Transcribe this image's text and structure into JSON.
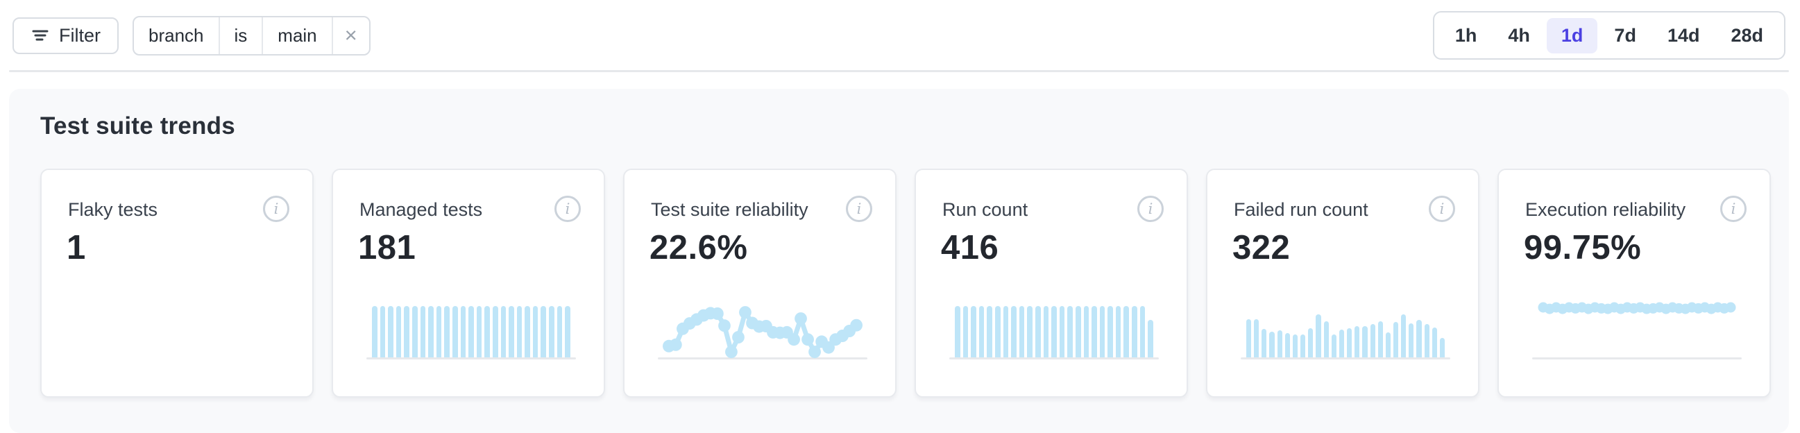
{
  "toolbar": {
    "filter_button": {
      "label": "Filter",
      "icon": "filter-lines-icon"
    },
    "filter_chip": {
      "field": "branch",
      "operator": "is",
      "value": "main",
      "remove_icon": "close-icon",
      "remove_symbol": "×"
    },
    "time_range": {
      "selected": "1d",
      "options": [
        "1h",
        "4h",
        "1d",
        "7d",
        "14d",
        "28d"
      ]
    }
  },
  "section": {
    "title": "Test suite trends",
    "cards": [
      {
        "label": "Flaky tests",
        "value": "1",
        "info_icon": "info-icon",
        "sparkline": null
      },
      {
        "label": "Managed tests",
        "value": "181",
        "info_icon": "info-icon",
        "sparkline": {
          "type": "bar",
          "scale": "relative-height-0-1 (no axis labels shown)",
          "values": [
            1,
            1,
            1,
            1,
            1,
            1,
            1,
            1,
            1,
            1,
            1,
            1,
            1,
            1,
            1,
            1,
            1,
            1,
            1,
            1,
            1,
            1,
            1,
            1,
            1
          ]
        }
      },
      {
        "label": "Test suite reliability",
        "value": "22.6%",
        "info_icon": "info-icon",
        "sparkline": {
          "type": "line",
          "scale": "relative-height-0-1 (no axis labels shown)",
          "values": [
            0.16,
            0.19,
            0.55,
            0.67,
            0.76,
            0.85,
            0.9,
            0.89,
            0.62,
            0.03,
            0.36,
            0.92,
            0.68,
            0.6,
            0.61,
            0.47,
            0.46,
            0.47,
            0.31,
            0.78,
            0.31,
            0.03,
            0.26,
            0.13,
            0.31,
            0.39,
            0.5,
            0.63
          ]
        }
      },
      {
        "label": "Run count",
        "value": "416",
        "info_icon": "info-icon",
        "sparkline": {
          "type": "bar",
          "scale": "relative-height-0-1 (no axis labels shown)",
          "values": [
            1,
            1,
            1,
            1,
            1,
            1,
            1,
            1,
            1,
            1,
            1,
            1,
            1,
            1,
            1,
            1,
            1,
            1,
            1,
            1,
            1,
            1,
            1,
            1,
            0.72
          ]
        }
      },
      {
        "label": "Failed run count",
        "value": "322",
        "info_icon": "info-icon",
        "sparkline": {
          "type": "bar",
          "scale": "relative-height-0-1 (no axis labels shown)",
          "values": [
            0.74,
            0.74,
            0.55,
            0.5,
            0.52,
            0.47,
            0.44,
            0.44,
            0.56,
            0.84,
            0.7,
            0.44,
            0.54,
            0.56,
            0.6,
            0.6,
            0.64,
            0.7,
            0.48,
            0.68,
            0.84,
            0.66,
            0.73,
            0.64,
            0.58,
            0.38
          ]
        }
      },
      {
        "label": "Execution reliability",
        "value": "99.75%",
        "info_icon": "info-icon",
        "sparkline": {
          "type": "dots",
          "scale": "relative-height-0-1 (no axis labels shown)",
          "values": [
            1,
            0.97,
            1,
            0.97,
            1,
            0.98,
            1,
            0.97,
            1,
            0.98,
            0.97,
            1,
            0.97,
            1,
            0.98,
            1,
            0.97,
            0.98,
            1,
            0.97,
            1,
            0.98,
            0.97,
            1,
            0.98,
            1,
            0.97,
            1,
            0.98,
            1
          ]
        }
      }
    ]
  },
  "colors": {
    "spark_blue": "#BEE5F8",
    "baseline_gray": "#E7E9EC",
    "selected_range_text": "#4B40E2",
    "selected_range_bg": "#ECEDFC",
    "panel_bg": "#F8F9FB"
  }
}
